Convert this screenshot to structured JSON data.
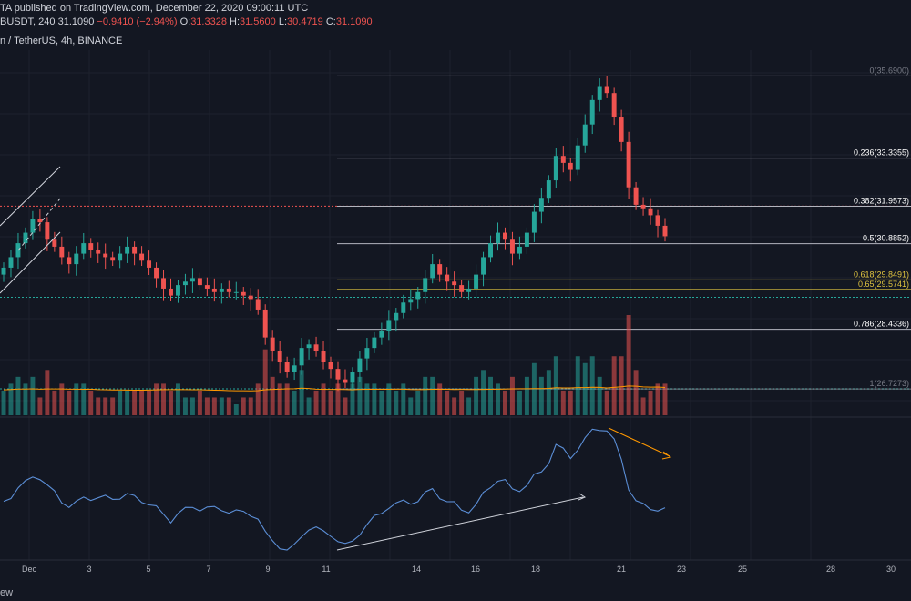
{
  "header": {
    "line1_prefix": "TA published on TradingView.com, December 22, 2020 09:00:11 UTC",
    "line1_partial": "TA published on TradingView.com, December 22, 2020 09:00:11 UTC",
    "symbol_tail": "BUSDT, 240",
    "last_price": "31.1090",
    "change": "−0.9410 (−2.94%)",
    "open_label": "O:",
    "open": "31.3328",
    "high_label": "H:",
    "high": "31.5600",
    "low_label": "L:",
    "low": "30.4719",
    "close_label": "C:",
    "close": "31.1090",
    "subtitle": "n / TetherUS, 4h, BINANCE"
  },
  "footer": {
    "text": "ew"
  },
  "chart_data": {
    "type": "candlestick",
    "symbol_description": "n / TetherUS, 4h, BINANCE",
    "x_tick_labels": [
      "Dec",
      "3",
      "5",
      "7",
      "9",
      "11",
      "14",
      "16",
      "18",
      "21",
      "23",
      "25",
      "28",
      "30"
    ],
    "fibonacci": [
      {
        "level": "0",
        "price": "35.6900"
      },
      {
        "level": "0.236",
        "price": "33.3355"
      },
      {
        "level": "0.382",
        "price": "31.9573"
      },
      {
        "level": "0.5",
        "price": "30.8852"
      },
      {
        "level": "0.618",
        "price": "29.8491"
      },
      {
        "level": "0.65",
        "price": "29.5741"
      },
      {
        "level": "0.786",
        "price": "28.4336"
      },
      {
        "level": "1",
        "price": "26.7273"
      }
    ],
    "horizontal_lines": [
      {
        "price": 31.96,
        "color": "#ef5350",
        "style": "dotted"
      },
      {
        "price": 29.35,
        "color": "#26a69a",
        "style": "dotted"
      },
      {
        "price": 26.73,
        "color": "#26a69a",
        "style": "dotted"
      }
    ],
    "price_range": [
      26.0,
      36.3
    ],
    "candles_approx": {
      "note": "approximate closes from the start of the visible window to the last bar",
      "closes": [
        30.2,
        30.5,
        30.9,
        31.2,
        31.6,
        31.5,
        31.0,
        30.8,
        30.5,
        30.3,
        30.6,
        30.9,
        30.7,
        30.6,
        30.5,
        30.4,
        30.6,
        30.8,
        30.6,
        30.4,
        30.2,
        29.9,
        29.6,
        29.4,
        29.7,
        29.8,
        29.9,
        29.7,
        29.6,
        29.5,
        29.6,
        29.5,
        29.5,
        29.4,
        29.3,
        29.0,
        28.2,
        27.8,
        27.5,
        27.2,
        27.4,
        27.9,
        28.0,
        27.8,
        27.5,
        27.3,
        27.0,
        26.9,
        27.2,
        27.6,
        27.9,
        28.2,
        28.4,
        28.7,
        28.9,
        29.2,
        29.3,
        29.5,
        29.9,
        30.3,
        30.0,
        29.8,
        29.7,
        29.5,
        29.6,
        30.0,
        30.5,
        30.9,
        31.2,
        31.0,
        30.6,
        30.8,
        31.2,
        31.8,
        32.2,
        32.7,
        33.4,
        33.2,
        33.0,
        33.7,
        34.3,
        35.0,
        35.4,
        35.2,
        34.5,
        33.8,
        32.5,
        32.0,
        31.9,
        31.7,
        31.4,
        31.1
      ]
    },
    "indicator": {
      "panel": "oscillator",
      "trendlines": [
        {
          "color": "#d1d4dc",
          "direction": "up"
        },
        {
          "color": "#ff9800",
          "direction": "down"
        }
      ]
    },
    "colors": {
      "up": "#26a69a",
      "down": "#ef5350",
      "background": "#131722",
      "grid": "#1e222d",
      "fib_white": "#b2b5be",
      "fib_yellow": "#e0c440",
      "volume_ma": "#ff9800",
      "oscillator": "#5b8ed6"
    }
  }
}
